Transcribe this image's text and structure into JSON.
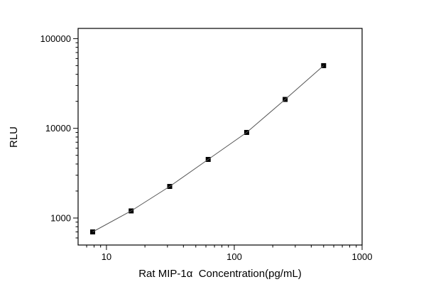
{
  "chart_data": {
    "type": "scatter",
    "title": "",
    "xlabel": "Rat MIP-1α  Concentration(pg/mL)",
    "ylabel": "RLU",
    "x_scale": "log",
    "y_scale": "log",
    "xlim": [
      6,
      1000
    ],
    "ylim": [
      500,
      130000
    ],
    "x": [
      7.8,
      15.6,
      31.25,
      62.5,
      125,
      250,
      500
    ],
    "y": [
      700,
      1200,
      2250,
      4500,
      9000,
      21000,
      50000
    ],
    "x_ticks": {
      "values": [
        10,
        100,
        1000
      ],
      "labels": [
        "10",
        "100",
        "1000"
      ]
    },
    "y_ticks": {
      "values": [
        1000,
        10000,
        100000
      ],
      "labels": [
        "1000",
        "10000",
        "100000"
      ]
    },
    "grid": false,
    "legend": "none",
    "frame": "full-box",
    "marker": {
      "shape": "square",
      "color": "#000000",
      "size": 7
    },
    "line": {
      "color": "#555555",
      "width": 1
    }
  }
}
